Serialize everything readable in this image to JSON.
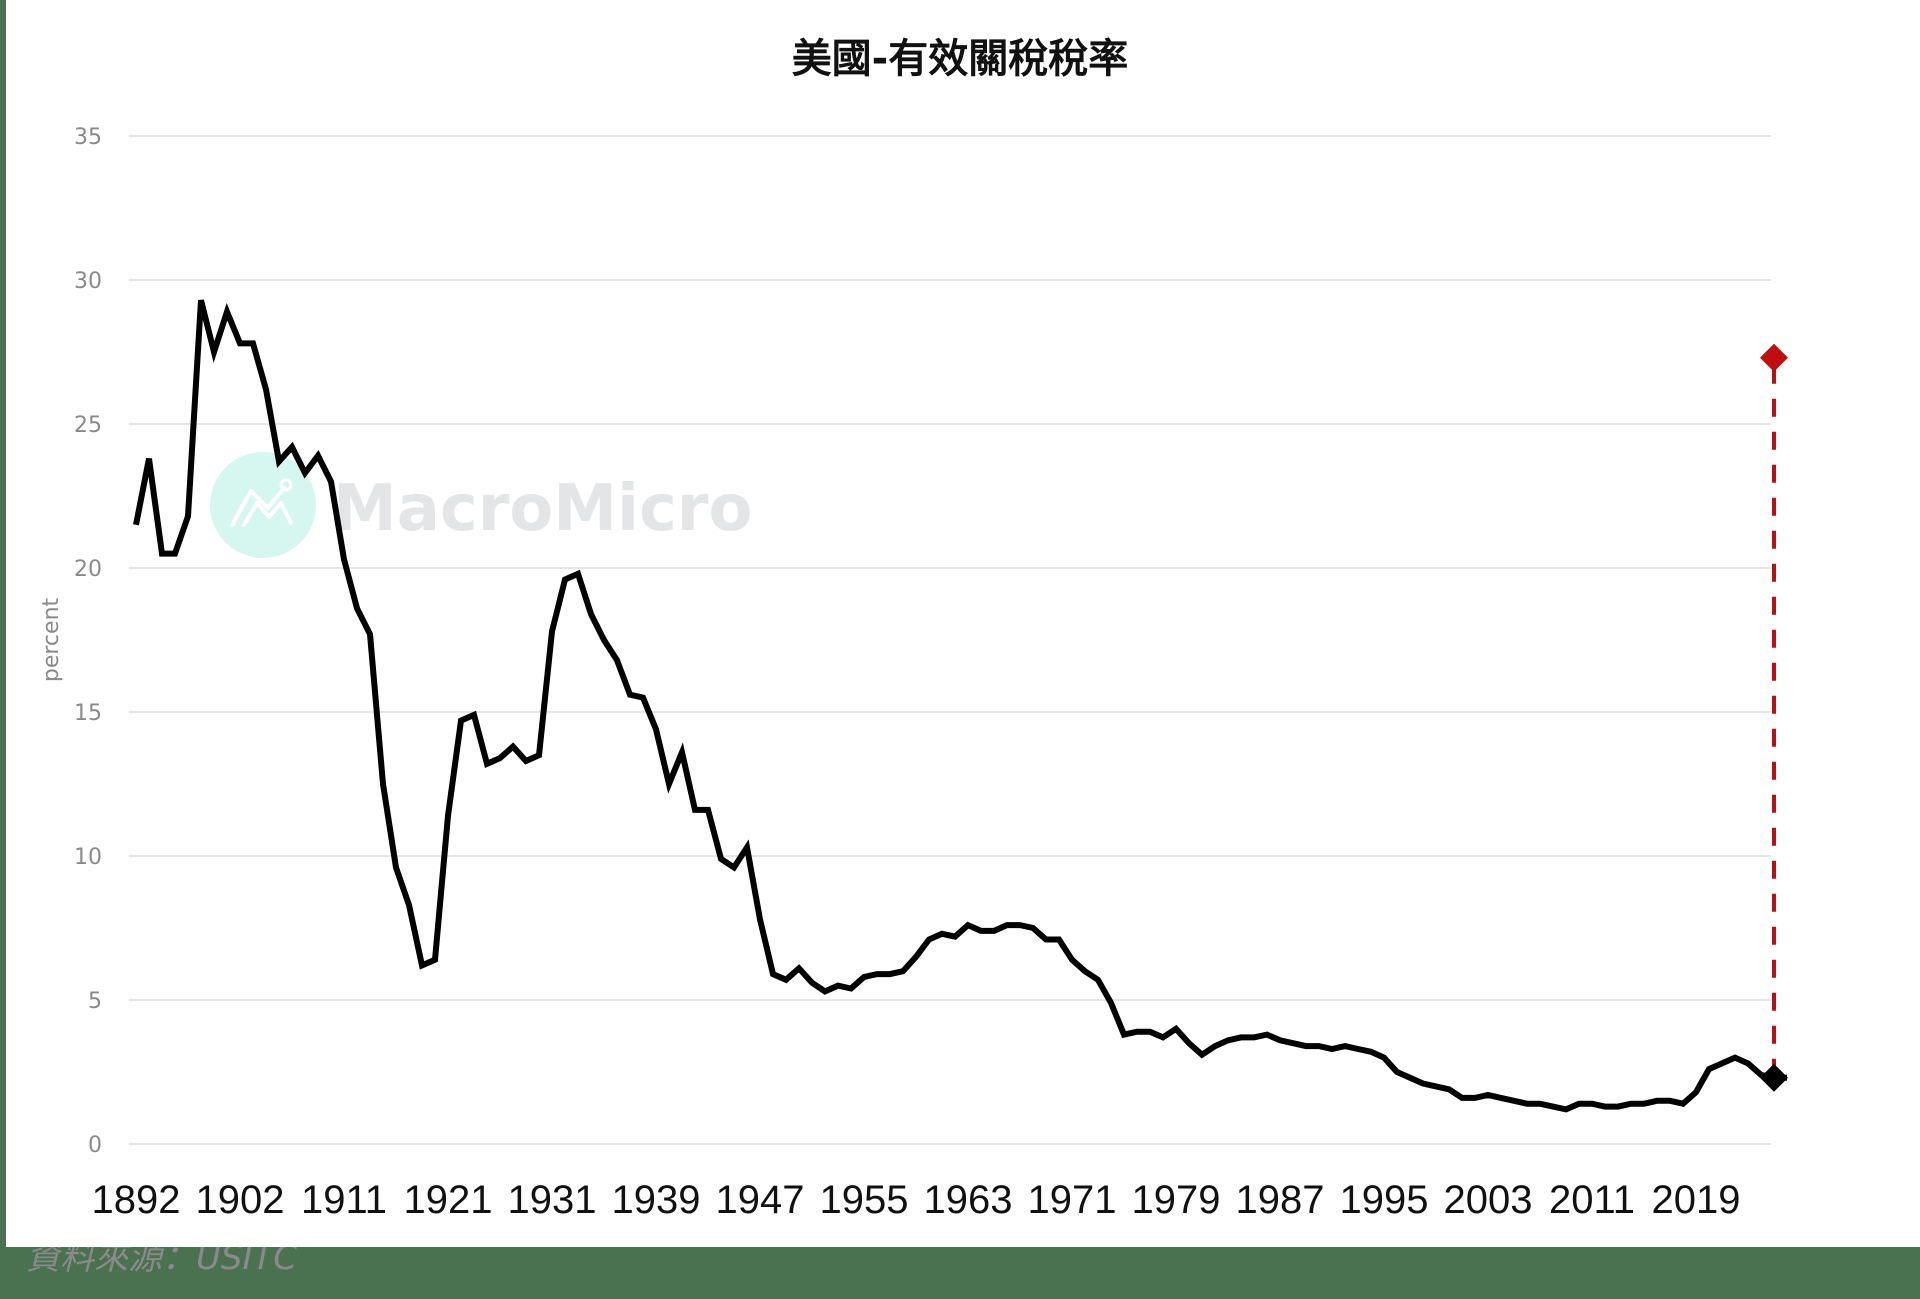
{
  "title": "美國-有效關稅稅率",
  "source": "資料來源：USITC",
  "watermark": "MacroMicro",
  "colors": {
    "background": "#4a7150",
    "line": "#000000",
    "projection": "#c00d0d",
    "grid": "#dddddd",
    "watermark_circle": "#d6f6f0"
  },
  "chart_data": {
    "type": "line",
    "title": "美國-有效關稅稅率",
    "xlabel": "",
    "ylabel": "percent",
    "ylim": [
      0,
      35
    ],
    "yticks": [
      0,
      5,
      10,
      15,
      20,
      25,
      30,
      35
    ],
    "grid": true,
    "legend": "none",
    "x_tick_labels": [
      {
        "index": 0,
        "label": "1892"
      },
      {
        "index": 8,
        "label": "1902"
      },
      {
        "index": 16,
        "label": "1911"
      },
      {
        "index": 24,
        "label": "1921"
      },
      {
        "index": 32,
        "label": "1931"
      },
      {
        "index": 40,
        "label": "1939"
      },
      {
        "index": 48,
        "label": "1947"
      },
      {
        "index": 56,
        "label": "1955"
      },
      {
        "index": 64,
        "label": "1963"
      },
      {
        "index": 72,
        "label": "1971"
      },
      {
        "index": 80,
        "label": "1979"
      },
      {
        "index": 88,
        "label": "1987"
      },
      {
        "index": 96,
        "label": "1995"
      },
      {
        "index": 104,
        "label": "2003"
      },
      {
        "index": 112,
        "label": "2011"
      },
      {
        "index": 120,
        "label": "2019"
      }
    ],
    "series": [
      {
        "name": "有效關稅稅率",
        "color": "#000000",
        "values": [
          21.5,
          23.8,
          20.5,
          20.5,
          21.8,
          29.3,
          27.5,
          28.9,
          27.8,
          27.8,
          26.2,
          23.7,
          24.2,
          23.3,
          23.9,
          23.0,
          20.3,
          18.6,
          17.7,
          12.5,
          9.6,
          8.3,
          6.2,
          6.4,
          11.4,
          14.7,
          14.9,
          13.2,
          13.4,
          13.8,
          13.3,
          13.5,
          17.8,
          19.6,
          19.8,
          18.4,
          17.5,
          16.8,
          15.6,
          15.5,
          14.4,
          12.5,
          13.6,
          11.6,
          11.6,
          9.9,
          9.6,
          10.3,
          7.8,
          5.9,
          5.7,
          6.1,
          5.6,
          5.3,
          5.5,
          5.4,
          5.8,
          5.9,
          5.9,
          6.0,
          6.5,
          7.1,
          7.3,
          7.2,
          7.6,
          7.4,
          7.4,
          7.6,
          7.6,
          7.5,
          7.1,
          7.1,
          6.4,
          6.0,
          5.7,
          4.9,
          3.8,
          3.9,
          3.9,
          3.7,
          4.0,
          3.5,
          3.1,
          3.4,
          3.6,
          3.7,
          3.7,
          3.8,
          3.6,
          3.5,
          3.4,
          3.4,
          3.3,
          3.4,
          3.3,
          3.2,
          3.0,
          2.5,
          2.3,
          2.1,
          2.0,
          1.9,
          1.6,
          1.6,
          1.7,
          1.6,
          1.5,
          1.4,
          1.4,
          1.3,
          1.2,
          1.4,
          1.4,
          1.3,
          1.3,
          1.4,
          1.4,
          1.5,
          1.5,
          1.4,
          1.8,
          2.6,
          2.8,
          3.0,
          2.8,
          2.4,
          2.3,
          2.3
        ]
      }
    ],
    "annotations": [
      {
        "type": "marker",
        "shape": "diamond",
        "index": 126,
        "value": 2.3,
        "color": "#000000"
      },
      {
        "type": "marker",
        "shape": "diamond",
        "index": 126,
        "value": 27.3,
        "color": "#c00d0d"
      },
      {
        "type": "dashed-vline",
        "index": 126,
        "from": 2.3,
        "to": 27.3,
        "color": "#c00d0d"
      }
    ]
  }
}
